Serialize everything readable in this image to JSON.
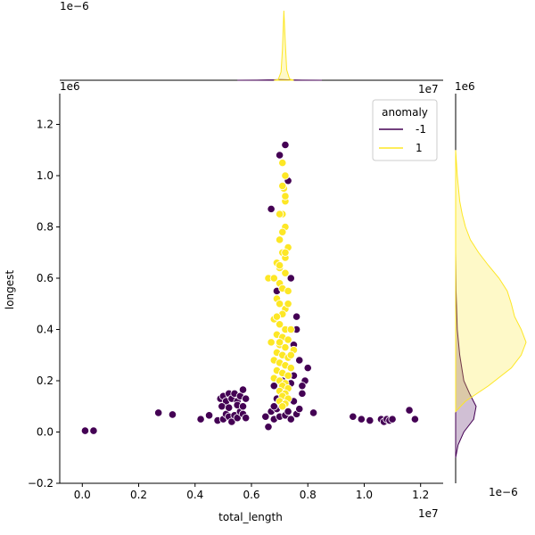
{
  "chart_data": {
    "type": "scatter",
    "title": "",
    "xlabel": "total_length",
    "ylabel": "longest",
    "x_offset_label": "1e7",
    "y_offset_label": "1e6",
    "top_marginal_offset_label": "1e−6",
    "right_marginal_offset_label": "1e−6",
    "xlim": [
      -0.08,
      1.28
    ],
    "ylim": [
      -0.2,
      1.32
    ],
    "x_ticks": [
      0.0,
      0.2,
      0.4,
      0.6,
      0.8,
      1.0,
      1.2
    ],
    "x_tick_labels": [
      "0.0",
      "0.2",
      "0.4",
      "0.6",
      "0.8",
      "1.0",
      "1.2"
    ],
    "y_ticks": [
      -0.2,
      0.0,
      0.2,
      0.4,
      0.6,
      0.8,
      1.0,
      1.2
    ],
    "y_tick_labels": [
      "−0.2",
      "0.0",
      "0.2",
      "0.4",
      "0.6",
      "0.8",
      "1.0",
      "1.2"
    ],
    "grid": false,
    "legend": {
      "title": "anomaly",
      "placement": "top-right",
      "entries": [
        {
          "label": "-1",
          "color": "#440154"
        },
        {
          "label": "1",
          "color": "#fde725"
        }
      ]
    },
    "series": [
      {
        "name": "-1",
        "color": "#440154",
        "points": [
          [
            0.01,
            0.005
          ],
          [
            0.04,
            0.005
          ],
          [
            0.27,
            0.075
          ],
          [
            0.32,
            0.068
          ],
          [
            0.42,
            0.05
          ],
          [
            0.45,
            0.065
          ],
          [
            0.48,
            0.045
          ],
          [
            0.49,
            0.13
          ],
          [
            0.5,
            0.14
          ],
          [
            0.51,
            0.12
          ],
          [
            0.52,
            0.15
          ],
          [
            0.53,
            0.13
          ],
          [
            0.54,
            0.15
          ],
          [
            0.55,
            0.12
          ],
          [
            0.56,
            0.14
          ],
          [
            0.57,
            0.165
          ],
          [
            0.58,
            0.13
          ],
          [
            0.5,
            0.05
          ],
          [
            0.51,
            0.07
          ],
          [
            0.52,
            0.06
          ],
          [
            0.53,
            0.04
          ],
          [
            0.54,
            0.065
          ],
          [
            0.55,
            0.055
          ],
          [
            0.56,
            0.08
          ],
          [
            0.57,
            0.07
          ],
          [
            0.58,
            0.055
          ],
          [
            0.495,
            0.1
          ],
          [
            0.52,
            0.095
          ],
          [
            0.55,
            0.105
          ],
          [
            0.57,
            0.1
          ],
          [
            0.65,
            0.06
          ],
          [
            0.66,
            0.02
          ],
          [
            0.67,
            0.08
          ],
          [
            0.68,
            0.05
          ],
          [
            0.69,
            0.09
          ],
          [
            0.7,
            0.06
          ],
          [
            0.71,
            0.1
          ],
          [
            0.72,
            0.065
          ],
          [
            0.73,
            0.08
          ],
          [
            0.74,
            0.05
          ],
          [
            0.75,
            0.12
          ],
          [
            0.76,
            0.07
          ],
          [
            0.77,
            0.09
          ],
          [
            0.78,
            0.15
          ],
          [
            0.79,
            0.2
          ],
          [
            0.8,
            0.25
          ],
          [
            0.82,
            0.075
          ],
          [
            0.76,
            0.4
          ],
          [
            0.75,
            0.34
          ],
          [
            0.77,
            0.28
          ],
          [
            0.74,
            0.6
          ],
          [
            0.76,
            0.45
          ],
          [
            0.75,
            0.22
          ],
          [
            0.78,
            0.18
          ],
          [
            0.67,
            0.87
          ],
          [
            0.7,
            1.08
          ],
          [
            0.72,
            1.12
          ],
          [
            0.73,
            0.98
          ],
          [
            0.69,
            0.55
          ],
          [
            0.68,
            0.18
          ],
          [
            0.69,
            0.13
          ],
          [
            0.7,
            0.16
          ],
          [
            0.71,
            0.2
          ],
          [
            0.72,
            0.14
          ],
          [
            0.73,
            0.17
          ],
          [
            0.68,
            0.1
          ],
          [
            0.74,
            0.19
          ],
          [
            0.96,
            0.06
          ],
          [
            0.99,
            0.05
          ],
          [
            1.02,
            0.045
          ],
          [
            1.06,
            0.05
          ],
          [
            1.07,
            0.04
          ],
          [
            1.08,
            0.05
          ],
          [
            1.09,
            0.045
          ],
          [
            1.1,
            0.05
          ],
          [
            1.16,
            0.085
          ],
          [
            1.18,
            0.05
          ]
        ]
      },
      {
        "name": "1",
        "color": "#fde725",
        "points": [
          [
            0.71,
            1.05
          ],
          [
            0.72,
            1.0
          ],
          [
            0.715,
            0.95
          ],
          [
            0.72,
            0.9
          ],
          [
            0.71,
            0.85
          ],
          [
            0.72,
            0.8
          ],
          [
            0.7,
            0.75
          ],
          [
            0.73,
            0.72
          ],
          [
            0.71,
            0.7
          ],
          [
            0.72,
            0.68
          ],
          [
            0.69,
            0.66
          ],
          [
            0.7,
            0.64
          ],
          [
            0.72,
            0.62
          ],
          [
            0.66,
            0.6
          ],
          [
            0.68,
            0.6
          ],
          [
            0.7,
            0.58
          ],
          [
            0.71,
            0.56
          ],
          [
            0.73,
            0.55
          ],
          [
            0.69,
            0.52
          ],
          [
            0.7,
            0.5
          ],
          [
            0.72,
            0.48
          ],
          [
            0.71,
            0.46
          ],
          [
            0.68,
            0.44
          ],
          [
            0.7,
            0.42
          ],
          [
            0.72,
            0.4
          ],
          [
            0.74,
            0.4
          ],
          [
            0.69,
            0.38
          ],
          [
            0.71,
            0.37
          ],
          [
            0.73,
            0.36
          ],
          [
            0.67,
            0.35
          ],
          [
            0.7,
            0.34
          ],
          [
            0.72,
            0.33
          ],
          [
            0.75,
            0.32
          ],
          [
            0.69,
            0.31
          ],
          [
            0.71,
            0.3
          ],
          [
            0.73,
            0.29
          ],
          [
            0.68,
            0.28
          ],
          [
            0.7,
            0.27
          ],
          [
            0.72,
            0.26
          ],
          [
            0.74,
            0.25
          ],
          [
            0.69,
            0.24
          ],
          [
            0.71,
            0.23
          ],
          [
            0.73,
            0.22
          ],
          [
            0.68,
            0.21
          ],
          [
            0.7,
            0.2
          ],
          [
            0.72,
            0.19
          ],
          [
            0.71,
            0.18
          ],
          [
            0.73,
            0.17
          ],
          [
            0.7,
            0.16
          ],
          [
            0.72,
            0.15
          ],
          [
            0.71,
            0.14
          ],
          [
            0.73,
            0.13
          ],
          [
            0.7,
            0.12
          ],
          [
            0.72,
            0.11
          ],
          [
            0.71,
            0.1
          ],
          [
            0.69,
            0.45
          ],
          [
            0.73,
            0.5
          ],
          [
            0.7,
            0.65
          ],
          [
            0.72,
            0.7
          ],
          [
            0.71,
            0.78
          ],
          [
            0.7,
            0.85
          ],
          [
            0.72,
            0.92
          ],
          [
            0.71,
            0.96
          ],
          [
            0.7,
            0.35
          ],
          [
            0.74,
            0.3
          ]
        ]
      }
    ],
    "top_marginal": {
      "series": [
        {
          "name": "-1",
          "color": "#440154",
          "x": [
            0.55,
            0.62,
            0.68,
            0.7,
            0.72,
            0.74,
            0.78,
            0.85
          ],
          "density": [
            0.0,
            0.002,
            0.006,
            0.01,
            0.008,
            0.005,
            0.002,
            0.0
          ]
        },
        {
          "name": "1",
          "color": "#fde725",
          "x": [
            0.68,
            0.695,
            0.705,
            0.71,
            0.715,
            0.72,
            0.725,
            0.735,
            0.75
          ],
          "density": [
            0.0,
            0.01,
            0.12,
            0.45,
            1.0,
            0.55,
            0.15,
            0.02,
            0.0
          ]
        }
      ]
    },
    "right_marginal": {
      "series": [
        {
          "name": "-1",
          "color": "#440154",
          "y": [
            -0.1,
            -0.05,
            0.0,
            0.05,
            0.1,
            0.15,
            0.2,
            0.3,
            0.4,
            0.55,
            0.7
          ],
          "density": [
            0.0,
            0.03,
            0.1,
            0.22,
            0.25,
            0.17,
            0.1,
            0.05,
            0.02,
            0.005,
            0.0
          ]
        },
        {
          "name": "1",
          "color": "#fde725",
          "y": [
            0.08,
            0.12,
            0.18,
            0.25,
            0.3,
            0.35,
            0.4,
            0.45,
            0.5,
            0.55,
            0.6,
            0.65,
            0.7,
            0.75,
            0.8,
            0.85,
            0.9,
            1.0,
            1.1
          ],
          "density": [
            0.0,
            0.12,
            0.4,
            0.68,
            0.8,
            0.86,
            0.8,
            0.72,
            0.68,
            0.63,
            0.53,
            0.4,
            0.28,
            0.18,
            0.12,
            0.08,
            0.05,
            0.02,
            0.0
          ]
        }
      ]
    }
  }
}
